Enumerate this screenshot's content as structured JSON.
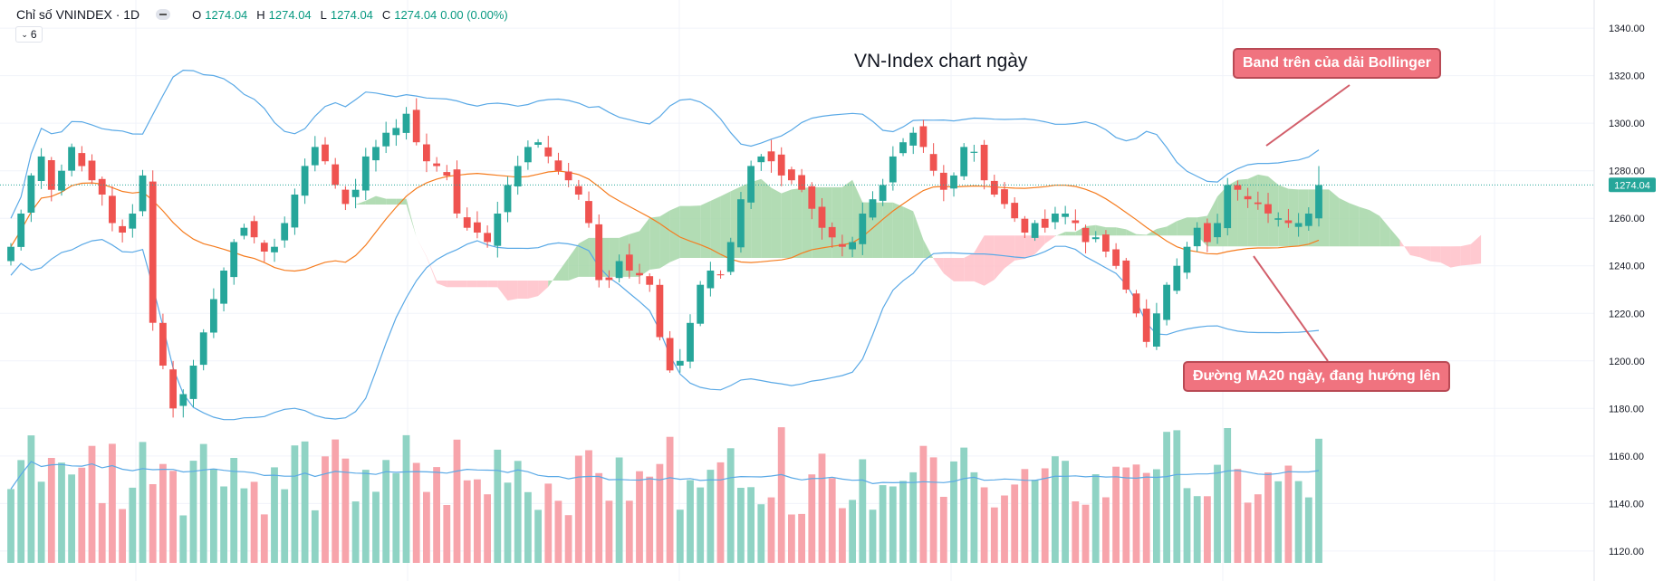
{
  "header": {
    "symbol_title": "Chỉ số VNINDEX · 1D",
    "ohlc": {
      "o_label": "O",
      "o_value": "1274.04",
      "h_label": "H",
      "h_value": "1274.04",
      "l_label": "L",
      "l_value": "1274.04",
      "c_label": "C",
      "c_value": "1274.04",
      "change": "0.00 (0.00%)"
    },
    "indicator_count": "6"
  },
  "annotations": {
    "chart_title": "VN-Index chart ngày",
    "upper_band_callout": "Band trên của dải Bollinger",
    "ma20_callout": "Đường MA20 ngày, đang hướng lên"
  },
  "colors": {
    "up": "#26a69a",
    "down": "#ef5350",
    "volume_up": "#8fd3c4",
    "volume_down": "#f7a4ab",
    "bollinger": "#5aa9e6",
    "ma20": "#f57c1f",
    "cloud_bull": "#a5d6a7",
    "cloud_bear": "#ffc0c8",
    "last_price_badge": "#26a69a",
    "callout_fill": "#f0737f",
    "callout_border": "#b94a55"
  },
  "chart_data": {
    "type": "candlestick",
    "symbol": "VNINDEX",
    "interval": "1D",
    "last_price": 1274.04,
    "last_price_label": "1274.04",
    "ylim": [
      1115,
      1345
    ],
    "price_axis_ticks": [
      "1340.00",
      "1320.00",
      "1300.00",
      "1280.00",
      "1260.00",
      "1240.00",
      "1220.00",
      "1200.00",
      "1180.00",
      "1160.00",
      "1140.00",
      "1120.00"
    ],
    "close": [
      1248,
      1262,
      1278,
      1286,
      1272,
      1280,
      1290,
      1282,
      1276,
      1270,
      1258,
      1254,
      1262,
      1278,
      1216,
      1198,
      1180,
      1186,
      1198,
      1212,
      1226,
      1238,
      1250,
      1256,
      1252,
      1246,
      1248,
      1258,
      1270,
      1282,
      1290,
      1284,
      1274,
      1266,
      1272,
      1286,
      1290,
      1296,
      1298,
      1304,
      1292,
      1284,
      1282,
      1278,
      1262,
      1256,
      1254,
      1250,
      1262,
      1274,
      1282,
      1290,
      1292,
      1286,
      1280,
      1276,
      1270,
      1258,
      1234,
      1234,
      1242,
      1238,
      1236,
      1232,
      1210,
      1196,
      1200,
      1216,
      1232,
      1238,
      1236,
      1250,
      1268,
      1282,
      1286,
      1284,
      1278,
      1276,
      1272,
      1264,
      1256,
      1252,
      1248,
      1250,
      1262,
      1268,
      1274,
      1286,
      1292,
      1296,
      1290,
      1280,
      1272,
      1278,
      1290,
      1288,
      1276,
      1270,
      1266,
      1260,
      1254,
      1258,
      1256,
      1262,
      1262,
      1258,
      1250,
      1252,
      1246,
      1240,
      1230,
      1220,
      1208,
      1220,
      1232,
      1240,
      1248,
      1256,
      1250,
      1258,
      1274,
      1272,
      1268,
      1266,
      1262,
      1260,
      1258,
      1258,
      1262,
      1274
    ]
  }
}
